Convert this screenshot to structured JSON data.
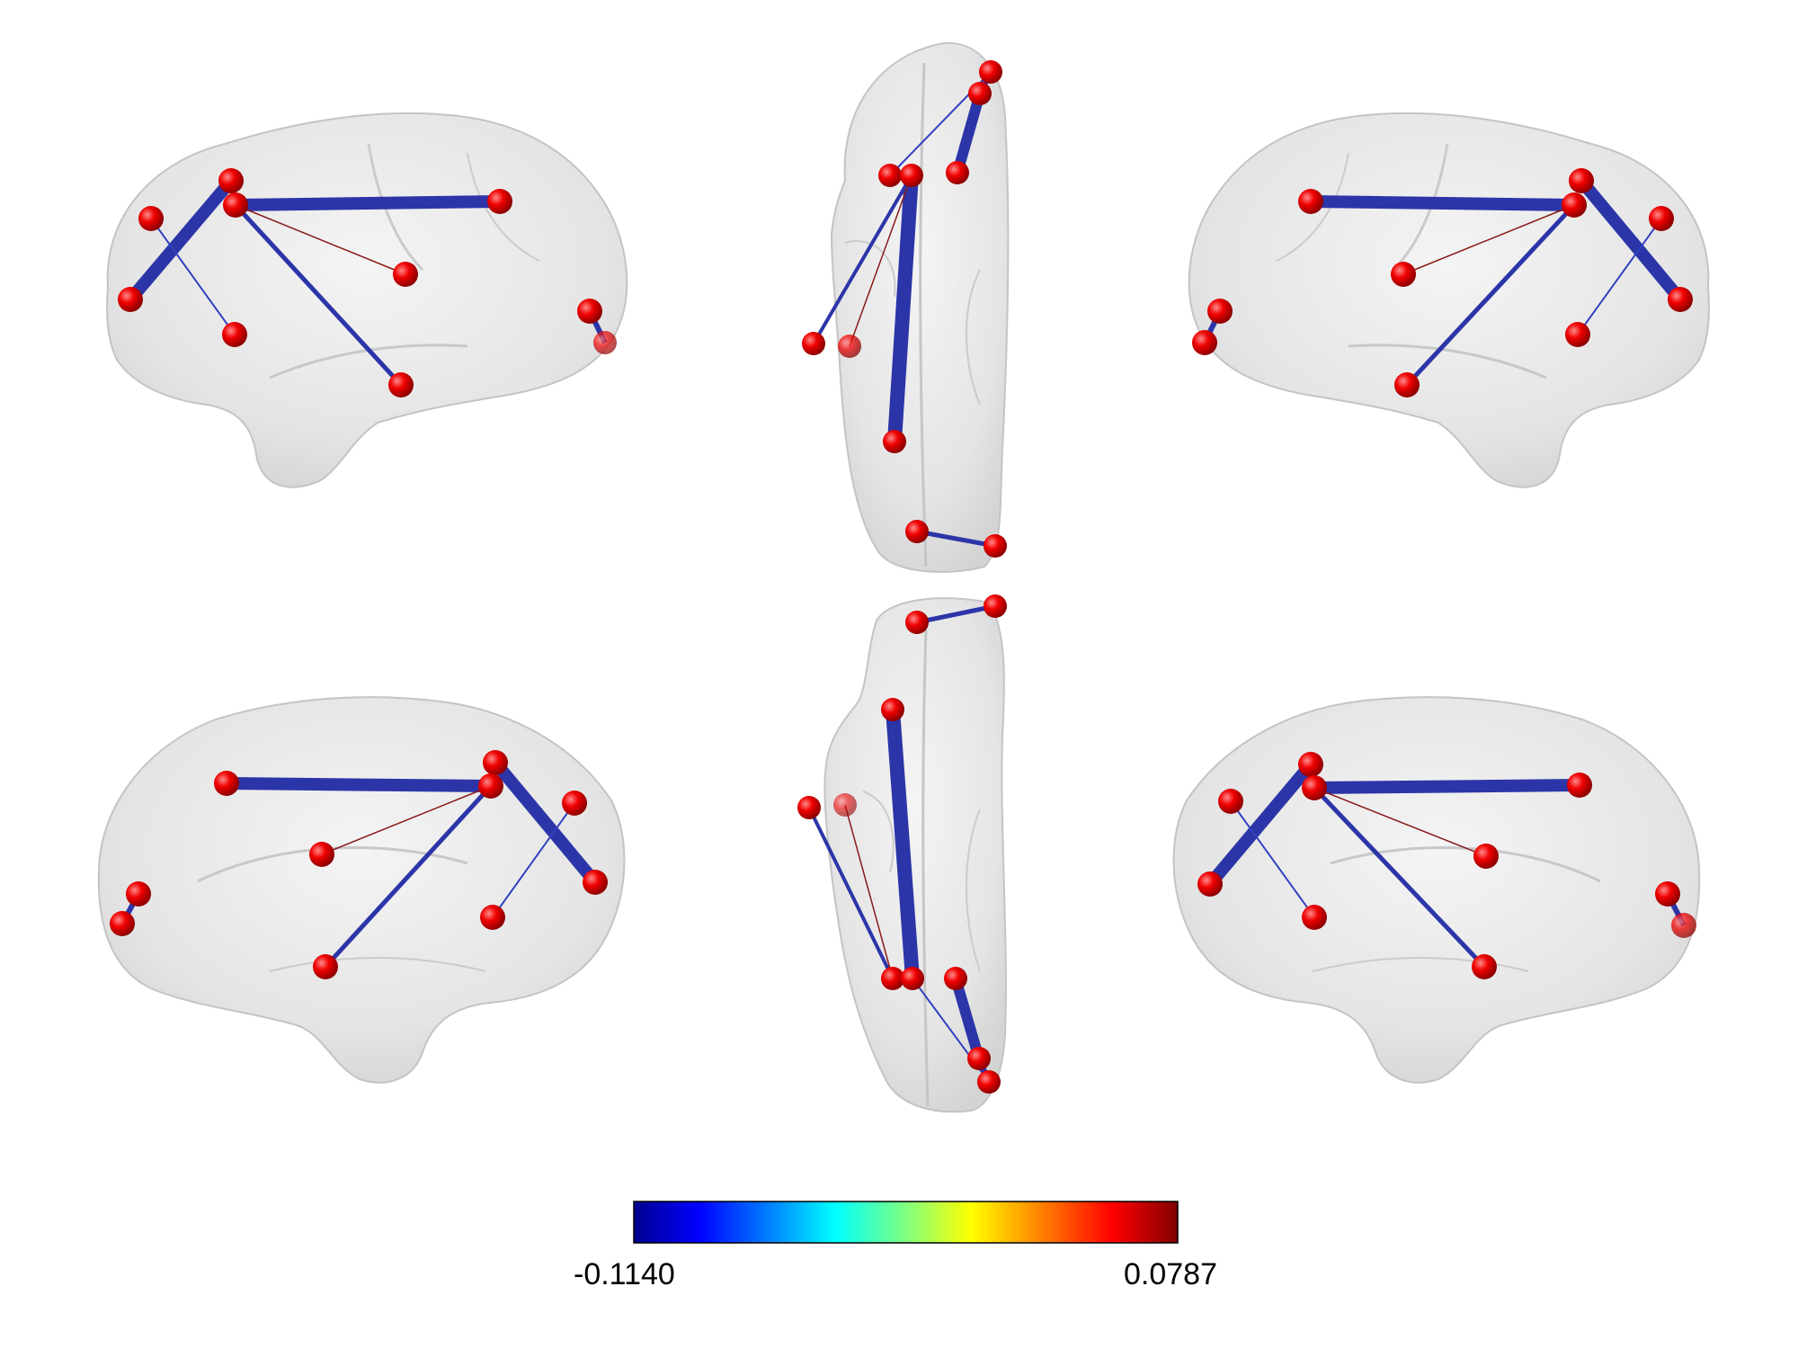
{
  "colorbar": {
    "min_label": "-0.1140",
    "max_label": "0.0787",
    "colormap": "jet",
    "stops": [
      "#00008f",
      "#0000ff",
      "#0080ff",
      "#00ffff",
      "#80ff80",
      "#ffff00",
      "#ff8000",
      "#ff0000",
      "#800000"
    ]
  },
  "colors": {
    "node": "#e00000",
    "edge_negative": "#2c35a8",
    "edge_positive": "#8a1a1a",
    "brain_fill": "#d9d9d9",
    "brain_outline": "#bdbdbd"
  },
  "views": [
    "lateral-left",
    "dorsal",
    "lateral-right",
    "medial-left",
    "ventral",
    "medial-right"
  ]
}
